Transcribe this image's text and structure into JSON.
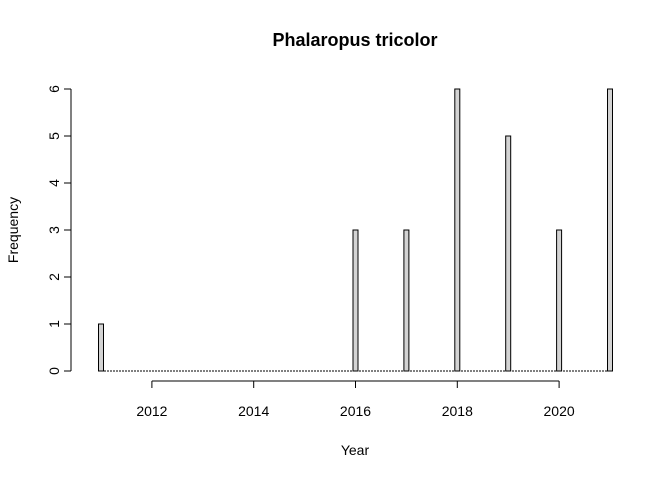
{
  "chart_data": {
    "type": "bar",
    "title": "Phalaropus tricolor",
    "xlabel": "Year",
    "ylabel": "Frequency",
    "x": [
      2011,
      2016,
      2017,
      2018,
      2019,
      2020,
      2021
    ],
    "values": [
      1,
      3,
      3,
      6,
      5,
      3,
      6
    ],
    "xlim": [
      2011,
      2021
    ],
    "ylim": [
      0,
      6
    ],
    "xticks": [
      2012,
      2014,
      2016,
      2018,
      2020
    ],
    "yticks": [
      0,
      1,
      2,
      3,
      4,
      5,
      6
    ],
    "bar_color": "#d3d3d3",
    "grid": false,
    "legend": "none"
  }
}
